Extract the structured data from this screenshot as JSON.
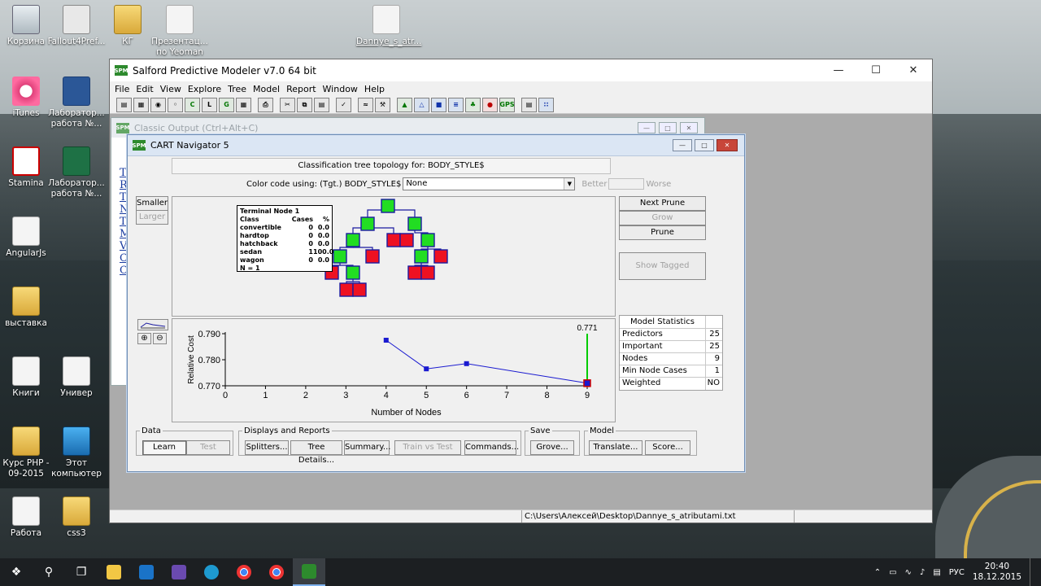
{
  "desktop": {
    "icons": [
      {
        "label": "Корзина",
        "kind": "bin"
      },
      {
        "label": "Fallout4Pref...",
        "kind": "gear"
      },
      {
        "label": "КГ",
        "kind": "folder"
      },
      {
        "label": "Презентац... по Yeoman",
        "kind": "file"
      },
      {
        "label": "Dannye_s_atr...",
        "kind": "file"
      },
      {
        "label": "iTunes",
        "kind": "itunes"
      },
      {
        "label": "Лаборатор... работа №...",
        "kind": "word"
      },
      {
        "label": "Stamina",
        "kind": "stamina"
      },
      {
        "label": "Лаборатор... работа №...",
        "kind": "excel"
      },
      {
        "label": "AngularJs",
        "kind": "file"
      },
      {
        "label": "выставка",
        "kind": "folder"
      },
      {
        "label": "Книги",
        "kind": "file"
      },
      {
        "label": "Универ",
        "kind": "file"
      },
      {
        "label": "Курс PHP - 09-2015",
        "kind": "folder"
      },
      {
        "label": "Этот компьютер",
        "kind": "pc"
      },
      {
        "label": "Работа",
        "kind": "file"
      },
      {
        "label": "css3",
        "kind": "folder"
      }
    ]
  },
  "app": {
    "title": "Salford Predictive Modeler v7.0 64 bit",
    "logo": "SPM",
    "menu": [
      "File",
      "Edit",
      "View",
      "Explore",
      "Tree",
      "Model",
      "Report",
      "Window",
      "Help"
    ],
    "status_path": "C:\\Users\\Алексей\\Desktop\\Dannye_s_atributami.txt"
  },
  "classic": {
    "title": "Classic Output (Ctrl+Alt+C)",
    "links": [
      "T",
      "R",
      "T",
      "N",
      "T",
      "M",
      "V",
      "C",
      "C"
    ]
  },
  "cart": {
    "title": "CART Navigator 5",
    "topology_label": "Classification tree topology for: BODY_STYLE$",
    "color_code_label": "Color code using: (Tgt.) BODY_STYLE$",
    "color_code_value": "None",
    "better": "Better",
    "worse": "Worse",
    "smaller": "Smaller",
    "larger": "Larger",
    "next_prune": "Next Prune",
    "grow": "Grow",
    "prune": "Prune",
    "show_tagged": "Show Tagged",
    "terminal_node": {
      "title": "Terminal Node 1",
      "header": {
        "c1": "Class",
        "c2": "Cases",
        "c3": "%"
      },
      "rows": [
        {
          "c1": "convertible",
          "c2": "0",
          "c3": "0.0"
        },
        {
          "c1": "hardtop",
          "c2": "0",
          "c3": "0.0"
        },
        {
          "c1": "hatchback",
          "c2": "0",
          "c3": "0.0"
        },
        {
          "c1": "sedan",
          "c2": "1",
          "c3": "100.0"
        },
        {
          "c1": "wagon",
          "c2": "0",
          "c3": "0.0"
        }
      ],
      "n": "N = 1"
    },
    "model_stats": {
      "title": "Model Statistics",
      "rows": [
        {
          "k": "Predictors",
          "v": "25"
        },
        {
          "k": "Important",
          "v": "25"
        },
        {
          "k": "Nodes",
          "v": "9"
        },
        {
          "k": "Min Node Cases",
          "v": "1"
        },
        {
          "k": "Weighted",
          "v": "NO"
        }
      ]
    },
    "groups": {
      "data": {
        "legend": "Data",
        "learn": "Learn",
        "test": "Test"
      },
      "displays": {
        "legend": "Displays and Reports",
        "splitters": "Splitters...",
        "tree_details": "Tree Details...",
        "summary": "Summary...",
        "train_vs_test": "Train vs Test",
        "commands": "Commands..."
      },
      "save": {
        "legend": "Save",
        "grove": "Grove..."
      },
      "model": {
        "legend": "Model",
        "translate": "Translate...",
        "score": "Score..."
      }
    }
  },
  "chart_data": {
    "type": "line",
    "xlabel": "Number of Nodes",
    "ylabel": "Relative Cost",
    "x_ticks": [
      "0",
      "1",
      "2",
      "3",
      "4",
      "5",
      "6",
      "7",
      "8",
      "9"
    ],
    "y_ticks": [
      "0.770",
      "0.780",
      "0.790"
    ],
    "xlim": [
      0,
      9
    ],
    "ylim": [
      0.77,
      0.79
    ],
    "series": [
      {
        "x": [
          4,
          5,
          6,
          9
        ],
        "y": [
          0.7875,
          0.7765,
          0.7785,
          0.771
        ]
      }
    ],
    "selected": {
      "x": 9,
      "y": 0.771,
      "label": "0.771"
    }
  },
  "taskbar": {
    "lang": "РУС",
    "time": "20:40",
    "date": "18.12.2015"
  }
}
